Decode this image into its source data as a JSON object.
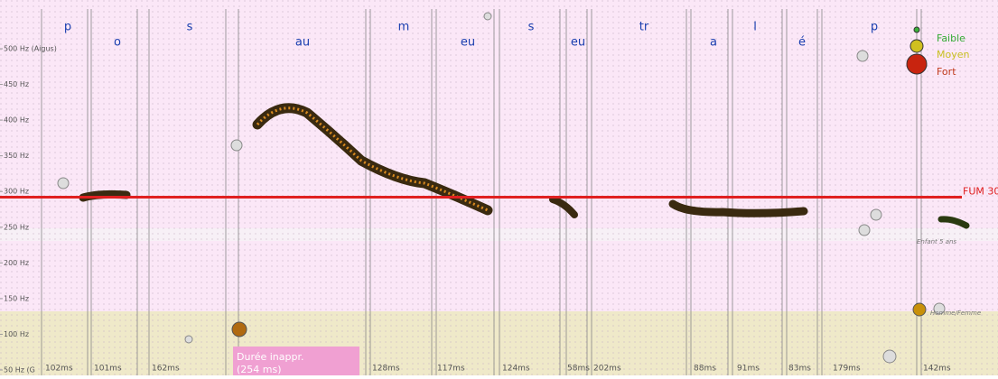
{
  "axis": {
    "ylim": [
      50,
      500
    ],
    "yticks": [
      {
        "value": 500,
        "label": "500 Hz (Aigus)"
      },
      {
        "value": 450,
        "label": "450 Hz"
      },
      {
        "value": 400,
        "label": "400 Hz"
      },
      {
        "value": 350,
        "label": "350 Hz"
      },
      {
        "value": 300,
        "label": "300 Hz"
      },
      {
        "value": 250,
        "label": "250 Hz"
      },
      {
        "value": 200,
        "label": "200 Hz"
      },
      {
        "value": 150,
        "label": "150 Hz"
      },
      {
        "value": 100,
        "label": "100 Hz"
      },
      {
        "value": 50,
        "label": "50 Hz (G"
      }
    ]
  },
  "reference": {
    "label": "FUM 30",
    "value": 292
  },
  "segments": [
    {
      "label": "p",
      "duration": "102ms"
    },
    {
      "label": "o",
      "duration": "101ms"
    },
    {
      "label": "s",
      "duration": "162ms"
    },
    {
      "label": "au",
      "duration": null
    },
    {
      "label": "m",
      "duration": "128ms"
    },
    {
      "label": "eu",
      "duration": "117ms"
    },
    {
      "label": "s",
      "duration": "124ms"
    },
    {
      "label": "eu",
      "duration": "58ms"
    },
    {
      "label": "tr",
      "duration": "202ms"
    },
    {
      "label": "a",
      "duration": "88ms"
    },
    {
      "label": "l",
      "duration": "91ms"
    },
    {
      "label": "é",
      "duration": "83ms"
    },
    {
      "label": "p",
      "duration": "179ms"
    },
    {
      "label": null,
      "duration": "142ms"
    }
  ],
  "legend": [
    "Faible",
    "Moyen",
    "Fort"
  ],
  "zones": [
    "Enfant 5 ans",
    "Homme/Femme"
  ],
  "annotation": [
    "Durée inappr.",
    "(254 ms)"
  ]
}
